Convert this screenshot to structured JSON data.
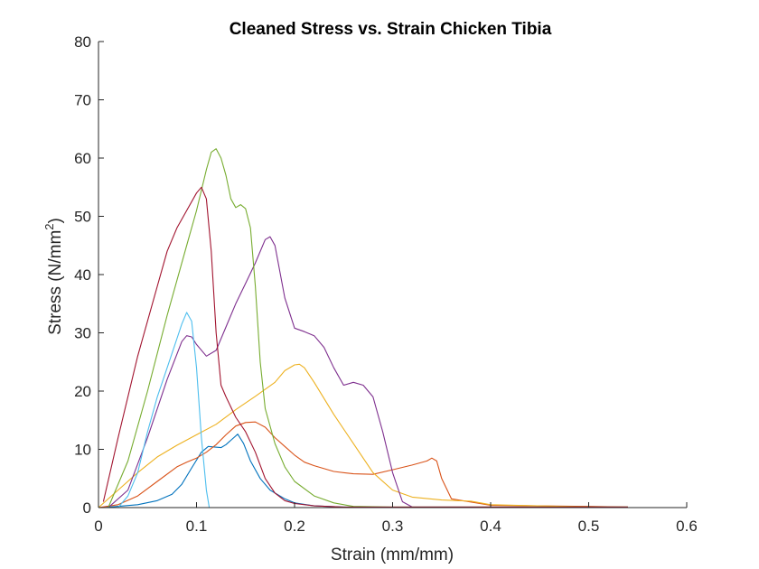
{
  "chart_data": {
    "type": "line",
    "title": "Cleaned Stress vs. Strain Chicken Tibia",
    "xlabel": "Strain (mm/mm)",
    "ylabel_main": "Stress (N/mm",
    "ylabel_sup": "2",
    "ylabel_close": ")",
    "xlim": [
      0,
      0.6
    ],
    "ylim": [
      0,
      80
    ],
    "xticks": [
      0,
      0.1,
      0.2,
      0.3,
      0.4,
      0.5,
      0.6
    ],
    "xtick_labels": [
      "0",
      "0.1",
      "0.2",
      "0.3",
      "0.4",
      "0.5",
      "0.6"
    ],
    "yticks": [
      0,
      10,
      20,
      30,
      40,
      50,
      60,
      70,
      80
    ],
    "ytick_labels": [
      "0",
      "10",
      "20",
      "30",
      "40",
      "50",
      "60",
      "70",
      "80"
    ],
    "grid": false,
    "series": [
      {
        "color": "#0072BD",
        "x": [
          0.005,
          0.04,
          0.06,
          0.075,
          0.085,
          0.095,
          0.105,
          0.112,
          0.118,
          0.125,
          0.13,
          0.138,
          0.142,
          0.148,
          0.155,
          0.165,
          0.175,
          0.19,
          0.2,
          0.22,
          0.25,
          0.3,
          0.4,
          0.5,
          0.54
        ],
        "y": [
          0,
          0.5,
          1.2,
          2.3,
          4,
          6.8,
          9.5,
          10.5,
          10.4,
          10.3,
          10.8,
          12,
          12.6,
          11,
          8,
          5,
          3,
          1.5,
          0.8,
          0.3,
          0.1,
          0,
          0,
          0,
          0
        ]
      },
      {
        "color": "#D95319",
        "x": [
          0,
          0.02,
          0.04,
          0.06,
          0.08,
          0.09,
          0.1,
          0.11,
          0.12,
          0.13,
          0.14,
          0.15,
          0.16,
          0.17,
          0.18,
          0.19,
          0.2,
          0.21,
          0.22,
          0.24,
          0.26,
          0.28,
          0.3,
          0.32,
          0.335,
          0.34,
          0.345,
          0.35,
          0.36,
          0.4,
          0.5,
          0.54
        ],
        "y": [
          0,
          0.5,
          2,
          4.5,
          7,
          7.8,
          8.5,
          9.5,
          10.8,
          12.5,
          14,
          14.6,
          14.7,
          13.8,
          12,
          10.5,
          9,
          7.8,
          7.2,
          6.2,
          5.8,
          5.7,
          6.5,
          7.3,
          8,
          8.5,
          8,
          5,
          1.5,
          0.4,
          0.2,
          0.1
        ]
      },
      {
        "color": "#EDB120",
        "x": [
          0,
          0.02,
          0.04,
          0.06,
          0.08,
          0.1,
          0.12,
          0.14,
          0.16,
          0.18,
          0.19,
          0.2,
          0.205,
          0.21,
          0.22,
          0.24,
          0.26,
          0.28,
          0.3,
          0.32,
          0.35,
          0.38,
          0.4,
          0.5,
          0.54
        ],
        "y": [
          0,
          3,
          6,
          8.7,
          10.7,
          12.5,
          14.3,
          16.8,
          19.1,
          21.5,
          23.5,
          24.5,
          24.6,
          24,
          21.5,
          16,
          11,
          6,
          3,
          1.8,
          1.3,
          1.1,
          0.5,
          0.1,
          0.1
        ]
      },
      {
        "color": "#7E2F8E",
        "x": [
          0.01,
          0.03,
          0.05,
          0.07,
          0.085,
          0.09,
          0.095,
          0.1,
          0.11,
          0.12,
          0.13,
          0.14,
          0.15,
          0.16,
          0.17,
          0.175,
          0.18,
          0.19,
          0.2,
          0.21,
          0.22,
          0.23,
          0.24,
          0.25,
          0.26,
          0.27,
          0.28,
          0.29,
          0.3,
          0.31,
          0.32,
          0.33,
          0.4,
          0.5,
          0.54
        ],
        "y": [
          0,
          3,
          12,
          22,
          28.5,
          29.5,
          29.3,
          28,
          26,
          27,
          31,
          35,
          38.5,
          42,
          46,
          46.5,
          45,
          36,
          30.8,
          30.2,
          29.5,
          27.5,
          24,
          21,
          21.5,
          21,
          19,
          13,
          6,
          1,
          0.1,
          0.1,
          0.1,
          0.1,
          0.1
        ]
      },
      {
        "color": "#77AC30",
        "x": [
          0.01,
          0.03,
          0.05,
          0.07,
          0.09,
          0.1,
          0.11,
          0.115,
          0.12,
          0.125,
          0.13,
          0.135,
          0.14,
          0.145,
          0.15,
          0.155,
          0.16,
          0.165,
          0.17,
          0.18,
          0.19,
          0.2,
          0.22,
          0.24,
          0.26,
          0.3,
          0.4,
          0.5,
          0.54
        ],
        "y": [
          0,
          8,
          20,
          33,
          45,
          51,
          58,
          61,
          61.6,
          60,
          57,
          53,
          51.5,
          52,
          51.3,
          48,
          38,
          25,
          17,
          11,
          7,
          4.5,
          2,
          0.8,
          0.2,
          0.1,
          0.1,
          0.1,
          0.1
        ]
      },
      {
        "color": "#4DBEEE",
        "x": [
          0.02,
          0.03,
          0.04,
          0.05,
          0.06,
          0.07,
          0.08,
          0.085,
          0.09,
          0.095,
          0.1,
          0.105,
          0.11,
          0.113
        ],
        "y": [
          0,
          2,
          6,
          13,
          19,
          24,
          29,
          31.5,
          33.5,
          32,
          24,
          12,
          3,
          0
        ]
      },
      {
        "color": "#A2142F",
        "x": [
          0.005,
          0.02,
          0.04,
          0.06,
          0.07,
          0.08,
          0.09,
          0.1,
          0.105,
          0.11,
          0.115,
          0.12,
          0.125,
          0.13,
          0.14,
          0.15,
          0.16,
          0.17,
          0.18,
          0.19,
          0.2,
          0.22,
          0.25,
          0.3,
          0.4,
          0.5,
          0.54
        ],
        "y": [
          1,
          12,
          26,
          38,
          44,
          48,
          51,
          54,
          55,
          53,
          44,
          30,
          21,
          19,
          15.5,
          13,
          9.5,
          5,
          2.5,
          1.2,
          0.7,
          0.3,
          0.1,
          0.1,
          0.1,
          0.1,
          0.1
        ]
      }
    ]
  }
}
